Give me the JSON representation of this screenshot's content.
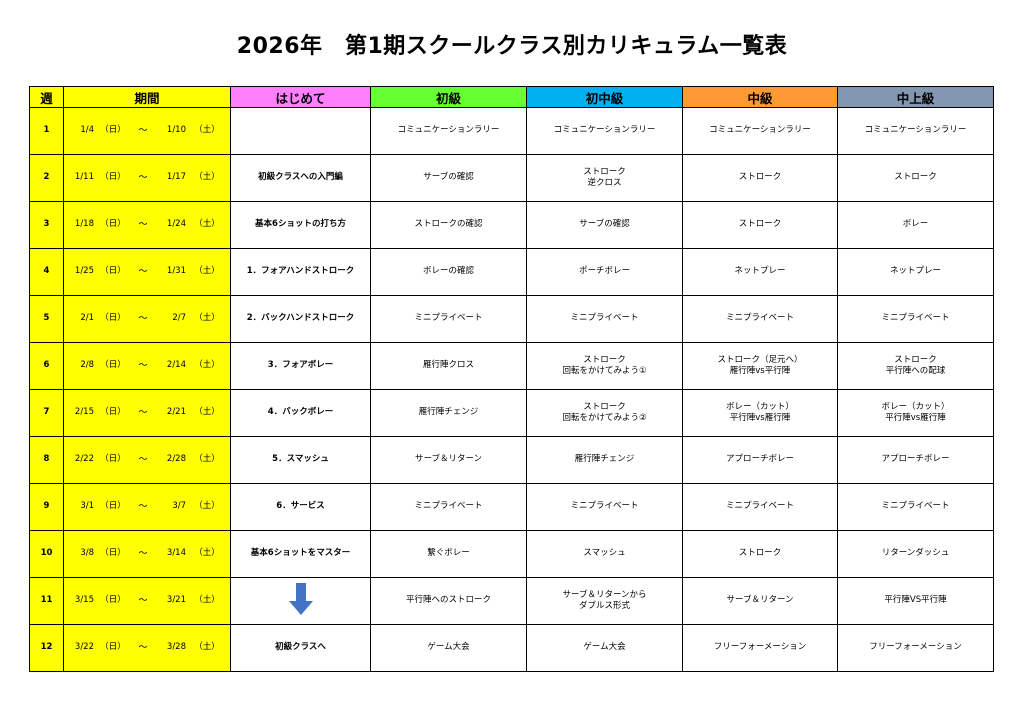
{
  "title": "2026年　第1期スクールクラス別カリキュラム一覧表",
  "headers": {
    "week": "週",
    "period": "期間",
    "hajimete": "はじめて",
    "shokyu": "初級",
    "shochukyu": "初中級",
    "chukyu": "中級",
    "chujokyu": "中上級"
  },
  "colors": {
    "yellow": "#ffff00",
    "hajimete": "#ff7fff",
    "shokyu": "#66ff33",
    "shochukyu": "#00b0f0",
    "chukyu": "#ff9933",
    "chujokyu": "#8497b0",
    "arrow": "#4472c4"
  },
  "rows": [
    {
      "week": "1",
      "start": "1/4",
      "day1": "（日）",
      "tilde": "～",
      "end": "1/10",
      "day2": "（土）",
      "hajimete": "",
      "sho": [
        "コミュニケーションラリー"
      ],
      "shochu": [
        "コミュニケーションラリー"
      ],
      "chu": [
        "コミュニケーションラリー"
      ],
      "chujo": [
        "コミュニケーションラリー"
      ]
    },
    {
      "week": "2",
      "start": "1/11",
      "day1": "（日）",
      "tilde": "～",
      "end": "1/17",
      "day2": "（土）",
      "hajimete": "初級クラスへの入門編",
      "sho": [
        "サーブの確認"
      ],
      "shochu": [
        "ストローク",
        "逆クロス"
      ],
      "chu": [
        "ストローク"
      ],
      "chujo": [
        "ストローク"
      ]
    },
    {
      "week": "3",
      "start": "1/18",
      "day1": "（日）",
      "tilde": "～",
      "end": "1/24",
      "day2": "（土）",
      "hajimete": "基本6ショットの打ち方",
      "sho": [
        "ストロークの確認"
      ],
      "shochu": [
        "サーブの確認"
      ],
      "chu": [
        "ストローク"
      ],
      "chujo": [
        "ボレー"
      ]
    },
    {
      "week": "4",
      "start": "1/25",
      "day1": "（日）",
      "tilde": "～",
      "end": "1/31",
      "day2": "（土）",
      "hajimete": "1．フォアハンドストローク",
      "sho": [
        "ボレーの確認"
      ],
      "shochu": [
        "ポーチボレー"
      ],
      "chu": [
        "ネットプレー"
      ],
      "chujo": [
        "ネットプレー"
      ]
    },
    {
      "week": "5",
      "start": "2/1",
      "day1": "（日）",
      "tilde": "～",
      "end": "2/7",
      "day2": "（土）",
      "hajimete": "2．バックハンドストローク",
      "sho": [
        "ミニプライベート"
      ],
      "shochu": [
        "ミニプライベート"
      ],
      "chu": [
        "ミニプライベート"
      ],
      "chujo": [
        "ミニプライベート"
      ]
    },
    {
      "week": "6",
      "start": "2/8",
      "day1": "（日）",
      "tilde": "～",
      "end": "2/14",
      "day2": "（土）",
      "hajimete": "3．フォアボレー",
      "sho": [
        "雁行陣クロス"
      ],
      "shochu": [
        "ストローク",
        "回転をかけてみよう①"
      ],
      "chu": [
        "ストローク（足元へ）",
        "雁行陣vs平行陣"
      ],
      "chujo": [
        "ストローク",
        "平行陣への配球"
      ]
    },
    {
      "week": "7",
      "start": "2/15",
      "day1": "（日）",
      "tilde": "～",
      "end": "2/21",
      "day2": "（土）",
      "hajimete": "4．バックボレー",
      "sho": [
        "雁行陣チェンジ"
      ],
      "shochu": [
        "ストローク",
        "回転をかけてみよう②"
      ],
      "chu": [
        "ボレー（カット）",
        "平行陣vs雁行陣"
      ],
      "chujo": [
        "ボレー（カット）",
        "平行陣vs雁行陣"
      ]
    },
    {
      "week": "8",
      "start": "2/22",
      "day1": "（日）",
      "tilde": "～",
      "end": "2/28",
      "day2": "（土）",
      "hajimete": "5．スマッシュ",
      "sho": [
        "サーブ＆リターン"
      ],
      "shochu": [
        "雁行陣チェンジ"
      ],
      "chu": [
        "アプローチボレー"
      ],
      "chujo": [
        "アプローチボレー"
      ]
    },
    {
      "week": "9",
      "start": "3/1",
      "day1": "（日）",
      "tilde": "～",
      "end": "3/7",
      "day2": "（土）",
      "hajimete": "6．サービス",
      "sho": [
        "ミニプライベート"
      ],
      "shochu": [
        "ミニプライベート"
      ],
      "chu": [
        "ミニプライベート"
      ],
      "chujo": [
        "ミニプライベート"
      ]
    },
    {
      "week": "10",
      "start": "3/8",
      "day1": "（日）",
      "tilde": "～",
      "end": "3/14",
      "day2": "（土）",
      "hajimete": "基本6ショットをマスター",
      "sho": [
        "繋ぐボレー"
      ],
      "shochu": [
        "スマッシュ"
      ],
      "chu": [
        "ストローク"
      ],
      "chujo": [
        "リターンダッシュ"
      ]
    },
    {
      "week": "11",
      "start": "3/15",
      "day1": "（日）",
      "tilde": "～",
      "end": "3/21",
      "day2": "（土）",
      "hajimete": "",
      "sho": [
        "平行陣へのストローク"
      ],
      "shochu": [
        "サーブ＆リターンから",
        "ダブルス形式"
      ],
      "chu": [
        "サーブ＆リターン"
      ],
      "chujo": [
        "平行陣VS平行陣"
      ]
    },
    {
      "week": "12",
      "start": "3/22",
      "day1": "（日）",
      "tilde": "～",
      "end": "3/28",
      "day2": "（土）",
      "hajimete": "初級クラスへ",
      "sho": [
        "ゲーム大会"
      ],
      "shochu": [
        "ゲーム大会"
      ],
      "chu": [
        "フリーフォーメーション"
      ],
      "chujo": [
        "フリーフォーメーション"
      ]
    }
  ]
}
